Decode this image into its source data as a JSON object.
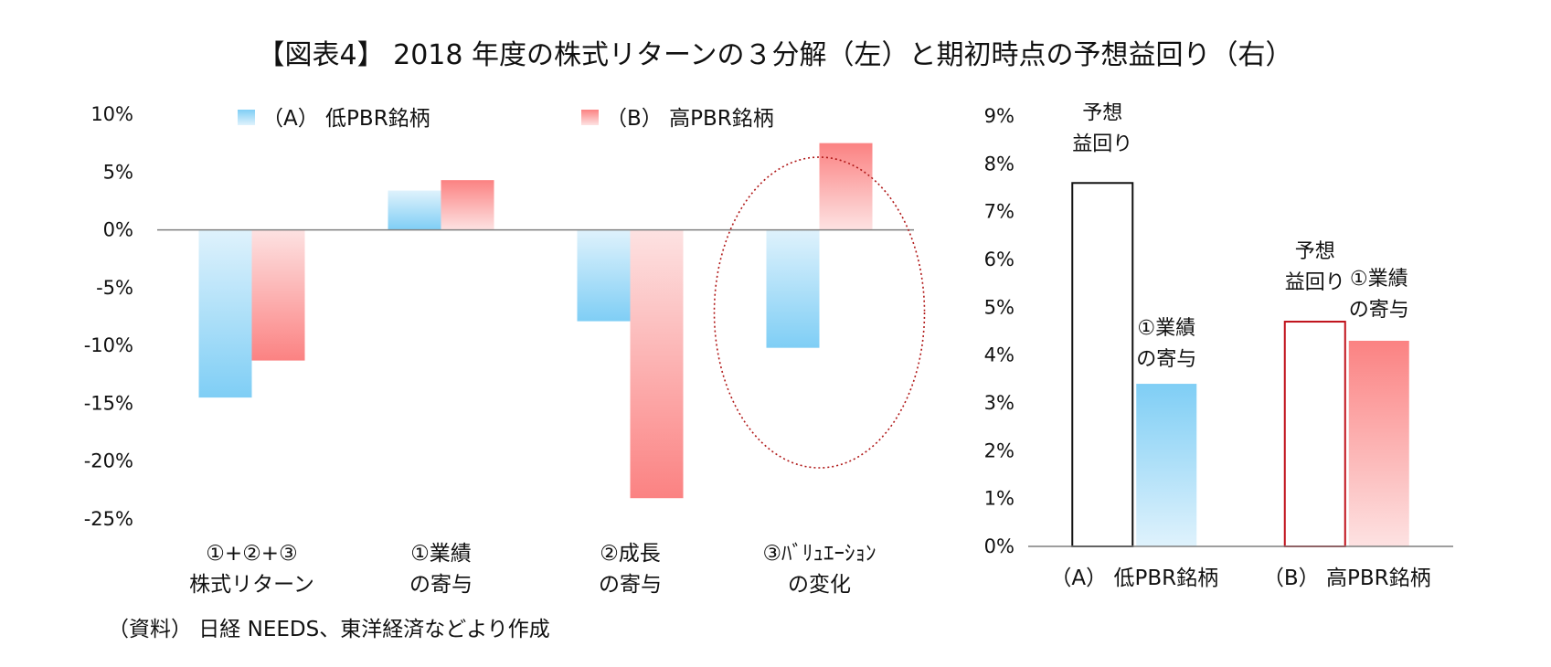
{
  "title": "【図表4】 2018 年度の株式リターンの３分解（左）と期初時点の予想益回り（右）",
  "source": "（資料） 日経 NEEDS、東洋経済などより作成",
  "colors": {
    "blue_dark": "#7fcef5",
    "blue_light": "#dff2fc",
    "red_dark": "#fb8282",
    "red_light": "#fde2e2",
    "outline_a": "#111111",
    "outline_b": "#c0101a",
    "ellipse": "#b01818",
    "axis": "#7f7f7f"
  },
  "chart_data": [
    {
      "type": "bar",
      "title": "",
      "ylim": [
        -25,
        10
      ],
      "yticks": [
        "10%",
        "5%",
        "0%",
        "-5%",
        "-10%",
        "-15%",
        "-20%",
        "-25%"
      ],
      "categories": [
        [
          "①+②+③",
          "株式リターン"
        ],
        [
          "①業績",
          "の寄与"
        ],
        [
          "②成長",
          "の寄与"
        ],
        [
          "③ﾊﾞﾘｭｴｰｼｮﾝ",
          "の変化"
        ]
      ],
      "series": [
        {
          "name": "（A） 低PBR銘柄",
          "values": [
            -14.5,
            3.4,
            -7.9,
            -10.2
          ]
        },
        {
          "name": "（B） 高PBR銘柄",
          "values": [
            -11.3,
            4.3,
            -23.2,
            7.5
          ]
        }
      ],
      "legend": "top",
      "grid": false,
      "highlight_category": 3
    },
    {
      "type": "bar",
      "title": "",
      "ylim": [
        0,
        9
      ],
      "yticks": [
        "9%",
        "8%",
        "7%",
        "6%",
        "5%",
        "4%",
        "3%",
        "2%",
        "1%",
        "0%"
      ],
      "categories": [
        "（A） 低PBR銘柄",
        "（B） 高PBR銘柄"
      ],
      "series": [
        {
          "name": "予想益回り",
          "values": [
            7.6,
            4.7
          ]
        },
        {
          "name": "①業績の寄与",
          "values": [
            3.4,
            4.3
          ]
        }
      ],
      "annotations": [
        [
          "予想",
          "益回り"
        ],
        [
          "①業績",
          "の寄与"
        ]
      ],
      "grid": false
    }
  ]
}
